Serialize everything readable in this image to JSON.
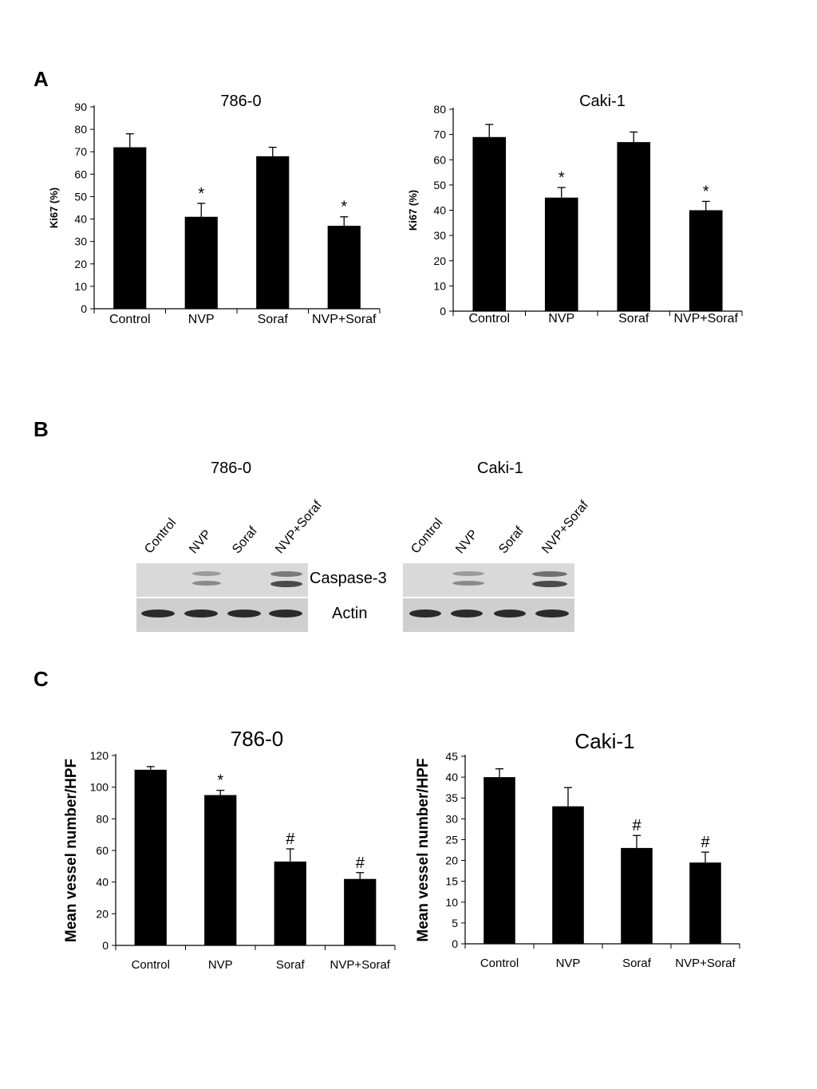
{
  "panels": {
    "a": "A",
    "b": "B",
    "c": "C"
  },
  "chart_data": [
    {
      "type": "bar",
      "title": "786-0",
      "ylabel": "Ki67 (%)",
      "categories": [
        "Control",
        "NVP",
        "Soraf",
        "NVP+Soraf"
      ],
      "values": [
        72,
        41,
        68,
        37
      ],
      "errors": [
        6,
        6,
        4,
        4
      ],
      "markers": [
        "",
        "*",
        "",
        "*"
      ],
      "ylim": [
        0,
        90
      ],
      "yticks": [
        0,
        10,
        20,
        30,
        40,
        50,
        60,
        70,
        80,
        90
      ]
    },
    {
      "type": "bar",
      "title": "Caki-1",
      "ylabel": "Ki67 (%)",
      "categories": [
        "Control",
        "NVP",
        "Soraf",
        "NVP+Soraf"
      ],
      "values": [
        69,
        45,
        67,
        40
      ],
      "errors": [
        5,
        4,
        4,
        3.5
      ],
      "markers": [
        "",
        "*",
        "",
        "*"
      ],
      "ylim": [
        0,
        80
      ],
      "yticks": [
        0,
        10,
        20,
        30,
        40,
        50,
        60,
        70,
        80
      ]
    },
    {
      "type": "bar",
      "title": "786-0",
      "ylabel": "Mean vessel number/HPF",
      "categories": [
        "Control",
        "NVP",
        "Soraf",
        "NVP+Soraf"
      ],
      "values": [
        111,
        95,
        53,
        42
      ],
      "errors": [
        2,
        3,
        8,
        4
      ],
      "markers": [
        "",
        "*",
        "#",
        "#"
      ],
      "ylim": [
        0,
        120
      ],
      "yticks": [
        0,
        20,
        40,
        60,
        80,
        100,
        120
      ]
    },
    {
      "type": "bar",
      "title": "Caki-1",
      "ylabel": "Mean vessel number/HPF",
      "categories": [
        "Control",
        "NVP",
        "Soraf",
        "NVP+Soraf"
      ],
      "values": [
        40,
        33,
        23,
        19.5
      ],
      "errors": [
        2,
        4.5,
        3,
        2.5
      ],
      "markers": [
        "",
        "",
        "#",
        "#"
      ],
      "ylim": [
        0,
        45
      ],
      "yticks": [
        0,
        5,
        10,
        15,
        20,
        25,
        30,
        35,
        40,
        45
      ]
    }
  ],
  "blots": {
    "left": {
      "title": "786-0",
      "lanes": [
        "Control",
        "NVP",
        "Soraf",
        "NVP+Soraf"
      ]
    },
    "right": {
      "title": "Caki-1",
      "lanes": [
        "Control",
        "NVP",
        "Soraf",
        "NVP+Soraf"
      ]
    },
    "proteins": [
      "Caspase-3",
      "Actin"
    ]
  }
}
